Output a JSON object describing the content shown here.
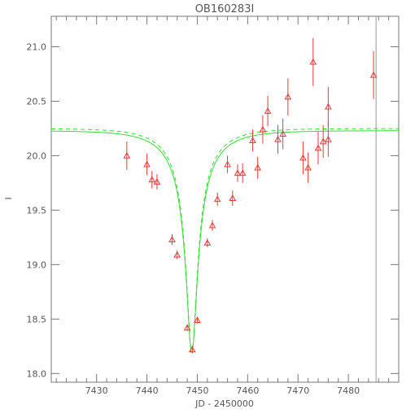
{
  "chart_data": {
    "type": "scatter",
    "title": "OB160283I",
    "xlabel": "JD - 2450000",
    "ylabel": "I",
    "xlim": [
      7421,
      7490
    ],
    "ylim": [
      21.28,
      17.92
    ],
    "y_inverted": true,
    "grid": false,
    "legend": "none",
    "x_ticks": [
      7430,
      7440,
      7450,
      7460,
      7470,
      7480
    ],
    "x_tick_labels": [
      "7430",
      "7440",
      "7450",
      "7460",
      "7470",
      "7480"
    ],
    "y_ticks": [
      18.0,
      18.5,
      19.0,
      19.5,
      20.0,
      20.5,
      21.0
    ],
    "y_tick_labels": [
      "18.0",
      "18.5",
      "19.0",
      "19.5",
      "20.0",
      "20.5",
      "21.0"
    ],
    "vertical_line_x": 7485.5,
    "colors": {
      "points": "#e83a3a",
      "model": "#33dd33",
      "axes": "#777777",
      "vline": "#999999"
    },
    "series": [
      {
        "points": [
          {
            "x": 7436.0,
            "y": 20.0,
            "err": 0.13
          },
          {
            "x": 7440.0,
            "y": 19.92,
            "err": 0.1
          },
          {
            "x": 7441.0,
            "y": 19.78,
            "err": 0.08
          },
          {
            "x": 7442.0,
            "y": 19.76,
            "err": 0.07
          },
          {
            "x": 7445.0,
            "y": 19.23,
            "err": 0.05
          },
          {
            "x": 7446.0,
            "y": 19.09,
            "err": 0.04
          },
          {
            "x": 7448.0,
            "y": 18.42,
            "err": 0.03
          },
          {
            "x": 7449.0,
            "y": 18.22,
            "err": 0.03
          },
          {
            "x": 7450.0,
            "y": 18.49,
            "err": 0.03
          },
          {
            "x": 7452.0,
            "y": 19.2,
            "err": 0.04
          },
          {
            "x": 7453.0,
            "y": 19.36,
            "err": 0.05
          },
          {
            "x": 7454.0,
            "y": 19.6,
            "err": 0.06
          },
          {
            "x": 7456.0,
            "y": 19.92,
            "err": 0.08
          },
          {
            "x": 7457.0,
            "y": 19.61,
            "err": 0.07
          },
          {
            "x": 7458.0,
            "y": 19.84,
            "err": 0.08
          },
          {
            "x": 7459.0,
            "y": 19.84,
            "err": 0.09
          },
          {
            "x": 7461.0,
            "y": 20.14,
            "err": 0.1
          },
          {
            "x": 7462.0,
            "y": 19.89,
            "err": 0.1
          },
          {
            "x": 7463.0,
            "y": 20.24,
            "err": 0.13
          },
          {
            "x": 7464.0,
            "y": 20.41,
            "err": 0.14
          },
          {
            "x": 7466.0,
            "y": 20.15,
            "err": 0.13
          },
          {
            "x": 7467.0,
            "y": 20.2,
            "err": 0.14
          },
          {
            "x": 7468.0,
            "y": 20.54,
            "err": 0.17
          },
          {
            "x": 7471.0,
            "y": 19.98,
            "err": 0.15
          },
          {
            "x": 7472.0,
            "y": 19.89,
            "err": 0.14
          },
          {
            "x": 7473.0,
            "y": 20.86,
            "err": 0.22
          },
          {
            "x": 7474.0,
            "y": 20.07,
            "err": 0.15
          },
          {
            "x": 7475.0,
            "y": 20.13,
            "err": 0.15
          },
          {
            "x": 7476.0,
            "y": 20.15,
            "err": 0.16
          },
          {
            "x": 7476.0,
            "y": 20.45,
            "err": 0.18
          },
          {
            "x": 7485.0,
            "y": 20.74,
            "err": 0.22
          }
        ]
      }
    ]
  }
}
